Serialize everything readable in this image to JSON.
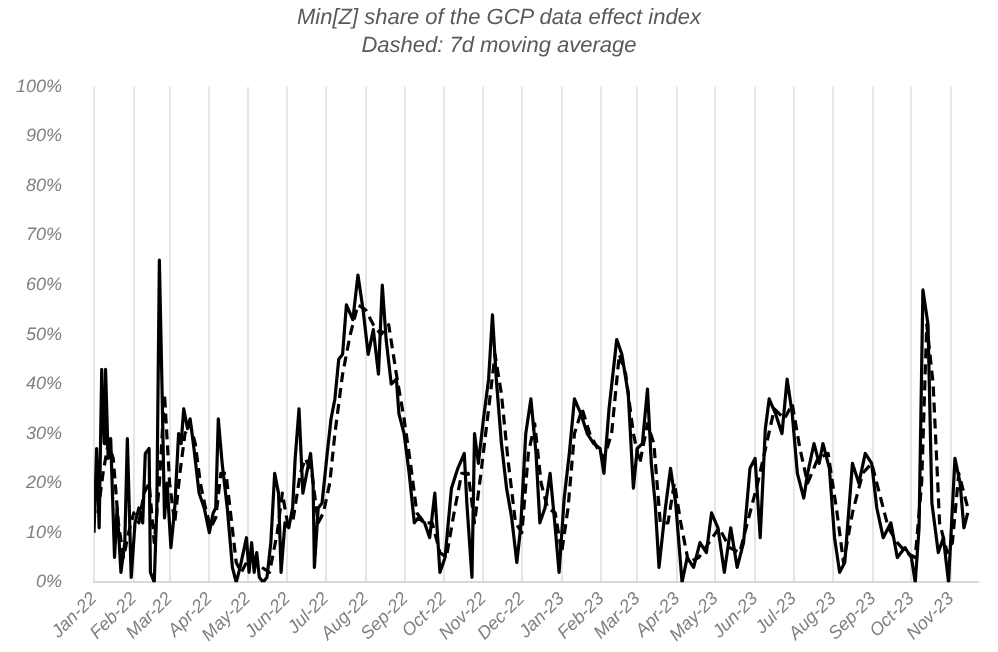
{
  "chart_data": {
    "type": "line",
    "title": "Min[Z] share of the GCP data effect index",
    "subtitle": "Dashed: 7d moving average",
    "xlim": [
      "2022-01-01",
      "2023-11-22"
    ],
    "xticks": [
      {
        "value": "2022-01-01",
        "label": "Jan-22"
      },
      {
        "value": "2022-02-01",
        "label": "Feb-22"
      },
      {
        "value": "2022-03-01",
        "label": "Mar-22"
      },
      {
        "value": "2022-04-01",
        "label": "Apr-22"
      },
      {
        "value": "2022-05-01",
        "label": "May-22"
      },
      {
        "value": "2022-06-01",
        "label": "Jun-22"
      },
      {
        "value": "2022-07-01",
        "label": "Jul-22"
      },
      {
        "value": "2022-08-01",
        "label": "Aug-22"
      },
      {
        "value": "2022-09-01",
        "label": "Sep-22"
      },
      {
        "value": "2022-10-01",
        "label": "Oct-22"
      },
      {
        "value": "2022-11-01",
        "label": "Nov-22"
      },
      {
        "value": "2022-12-01",
        "label": "Dec-22"
      },
      {
        "value": "2023-01-01",
        "label": "Jan-23"
      },
      {
        "value": "2023-02-01",
        "label": "Feb-23"
      },
      {
        "value": "2023-03-01",
        "label": "Mar-23"
      },
      {
        "value": "2023-04-01",
        "label": "Apr-23"
      },
      {
        "value": "2023-05-01",
        "label": "May-23"
      },
      {
        "value": "2023-06-01",
        "label": "Jun-23"
      },
      {
        "value": "2023-07-01",
        "label": "Jul-23"
      },
      {
        "value": "2023-08-01",
        "label": "Aug-23"
      },
      {
        "value": "2023-09-01",
        "label": "Sep-23"
      },
      {
        "value": "2023-10-01",
        "label": "Oct-23"
      },
      {
        "value": "2023-11-01",
        "label": "Nov-23"
      }
    ],
    "ylim": [
      0,
      100
    ],
    "yticks": [
      {
        "value": 0,
        "label": "0%"
      },
      {
        "value": 10,
        "label": "10%"
      },
      {
        "value": 20,
        "label": "20%"
      },
      {
        "value": 30,
        "label": "30%"
      },
      {
        "value": 40,
        "label": "40%"
      },
      {
        "value": 50,
        "label": "50%"
      },
      {
        "value": 60,
        "label": "60%"
      },
      {
        "value": 70,
        "label": "70%"
      },
      {
        "value": 80,
        "label": "80%"
      },
      {
        "value": 90,
        "label": "90%"
      },
      {
        "value": 100,
        "label": "100%"
      }
    ],
    "grid": "x",
    "legend": false,
    "marker": "none",
    "series": [
      {
        "color": "#000000",
        "line_style": "solid",
        "x": [
          "2022-01-01",
          "2022-01-03",
          "2022-01-05",
          "2022-01-07",
          "2022-01-09",
          "2022-01-10",
          "2022-01-12",
          "2022-01-14",
          "2022-01-17",
          "2022-01-19",
          "2022-01-22",
          "2022-01-25",
          "2022-01-27",
          "2022-01-30",
          "2022-02-02",
          "2022-02-05",
          "2022-02-08",
          "2022-02-10",
          "2022-02-13",
          "2022-02-14",
          "2022-02-17",
          "2022-02-19",
          "2022-02-21",
          "2022-02-23",
          "2022-02-25",
          "2022-02-27",
          "2022-03-02",
          "2022-03-05",
          "2022-03-08",
          "2022-03-10",
          "2022-03-12",
          "2022-03-15",
          "2022-03-17",
          "2022-03-20",
          "2022-03-24",
          "2022-03-28",
          "2022-04-01",
          "2022-04-04",
          "2022-04-06",
          "2022-04-08",
          "2022-04-11",
          "2022-04-15",
          "2022-04-19",
          "2022-04-22",
          "2022-04-25",
          "2022-04-30",
          "2022-05-02",
          "2022-05-04",
          "2022-05-06",
          "2022-05-08",
          "2022-05-10",
          "2022-05-13",
          "2022-05-16",
          "2022-05-19",
          "2022-05-22",
          "2022-05-25",
          "2022-05-27",
          "2022-05-30",
          "2022-06-02",
          "2022-06-05",
          "2022-06-07",
          "2022-06-10",
          "2022-06-13",
          "2022-06-16",
          "2022-06-19",
          "2022-06-21",
          "2022-06-22",
          "2022-06-25",
          "2022-06-28",
          "2022-07-02",
          "2022-07-05",
          "2022-07-08",
          "2022-07-11",
          "2022-07-14",
          "2022-07-17",
          "2022-07-22",
          "2022-07-26",
          "2022-07-30",
          "2022-08-03",
          "2022-08-07",
          "2022-08-11",
          "2022-08-14",
          "2022-08-17",
          "2022-08-21",
          "2022-08-25",
          "2022-08-27",
          "2022-08-31",
          "2022-09-04",
          "2022-09-08",
          "2022-09-11",
          "2022-09-16",
          "2022-09-20",
          "2022-09-24",
          "2022-09-28",
          "2022-10-02",
          "2022-10-07",
          "2022-10-12",
          "2022-10-17",
          "2022-10-19",
          "2022-10-23",
          "2022-10-25",
          "2022-10-28",
          "2022-11-01",
          "2022-11-05",
          "2022-11-08",
          "2022-11-11",
          "2022-11-15",
          "2022-11-19",
          "2022-11-23",
          "2022-11-27",
          "2022-11-30",
          "2022-12-04",
          "2022-12-08",
          "2022-12-12",
          "2022-12-15",
          "2022-12-19",
          "2022-12-23",
          "2022-12-27",
          "2022-12-30",
          "2023-01-03",
          "2023-01-07",
          "2023-01-11",
          "2023-01-16",
          "2023-01-21",
          "2023-01-26",
          "2023-01-31",
          "2023-02-03",
          "2023-02-07",
          "2023-02-13",
          "2023-02-17",
          "2023-02-22",
          "2023-02-26",
          "2023-03-01",
          "2023-03-05",
          "2023-03-09",
          "2023-03-12",
          "2023-03-15",
          "2023-03-18",
          "2023-03-23",
          "2023-03-27",
          "2023-03-31",
          "2023-04-05",
          "2023-04-09",
          "2023-04-14",
          "2023-04-19",
          "2023-04-24",
          "2023-04-28",
          "2023-05-03",
          "2023-05-08",
          "2023-05-13",
          "2023-05-18",
          "2023-05-23",
          "2023-05-28",
          "2023-06-01",
          "2023-06-05",
          "2023-06-09",
          "2023-06-12",
          "2023-06-17",
          "2023-06-22",
          "2023-06-26",
          "2023-06-30",
          "2023-07-04",
          "2023-07-09",
          "2023-07-12",
          "2023-07-17",
          "2023-07-21",
          "2023-07-24",
          "2023-07-29",
          "2023-08-02",
          "2023-08-06",
          "2023-08-10",
          "2023-08-16",
          "2023-08-21",
          "2023-08-26",
          "2023-08-31",
          "2023-09-04",
          "2023-09-09",
          "2023-09-15",
          "2023-09-20",
          "2023-09-26",
          "2023-10-01",
          "2023-10-04",
          "2023-10-07",
          "2023-10-10",
          "2023-10-14",
          "2023-10-17",
          "2023-10-22",
          "2023-10-26",
          "2023-10-30",
          "2023-11-04",
          "2023-11-08",
          "2023-11-11",
          "2023-11-14"
        ],
        "values": [
          10,
          27,
          11,
          43,
          28,
          43,
          25,
          29,
          5,
          15,
          2,
          8,
          29,
          1,
          12,
          15,
          12,
          26,
          27,
          2,
          0,
          15,
          65,
          40,
          13,
          20,
          7,
          15,
          30,
          28,
          35,
          31,
          33,
          27,
          18,
          15,
          10,
          14,
          15,
          33,
          24,
          15,
          3,
          0,
          3,
          9,
          2,
          8,
          2,
          6,
          1,
          0,
          1,
          8,
          22,
          18,
          2,
          12,
          11,
          15,
          25,
          35,
          18,
          22,
          26,
          20,
          3,
          15,
          16,
          26,
          33,
          37,
          45,
          46,
          56,
          53,
          62,
          55,
          46,
          51,
          42,
          60,
          49,
          40,
          41,
          34,
          30,
          22,
          12,
          13,
          12,
          9,
          18,
          2,
          5,
          19,
          23,
          26,
          16,
          1,
          30,
          24,
          33,
          41,
          54,
          41,
          28,
          19,
          13,
          4,
          11,
          30,
          37,
          26,
          12,
          15,
          22,
          11,
          2,
          17,
          26,
          37,
          34,
          30,
          28,
          27,
          22,
          35,
          49,
          46,
          38,
          19,
          27,
          28,
          39,
          24,
          16,
          3,
          15,
          23,
          16,
          0,
          5,
          3,
          8,
          6,
          14,
          11,
          2,
          11,
          3,
          8,
          23,
          25,
          9,
          31,
          37,
          34,
          30,
          41,
          34,
          22,
          17,
          22,
          28,
          24,
          28,
          23,
          9,
          2,
          4,
          24,
          20,
          26,
          24,
          15,
          9,
          12,
          5,
          7,
          5,
          0,
          11,
          59,
          52,
          16,
          6,
          9,
          0,
          25,
          20,
          11,
          14
        ]
      },
      {
        "color": "#000000",
        "line_style": "dashed",
        "x": [
          "2022-01-04",
          "2022-01-08",
          "2022-01-12",
          "2022-01-16",
          "2022-01-20",
          "2022-01-24",
          "2022-01-28",
          "2022-02-01",
          "2022-02-05",
          "2022-02-09",
          "2022-02-13",
          "2022-02-17",
          "2022-02-21",
          "2022-02-25",
          "2022-03-01",
          "2022-03-05",
          "2022-03-09",
          "2022-03-13",
          "2022-03-17",
          "2022-03-21",
          "2022-03-25",
          "2022-03-29",
          "2022-04-02",
          "2022-04-06",
          "2022-04-10",
          "2022-04-14",
          "2022-04-18",
          "2022-04-22",
          "2022-04-26",
          "2022-04-30",
          "2022-05-06",
          "2022-05-12",
          "2022-05-18",
          "2022-05-24",
          "2022-05-28",
          "2022-06-01",
          "2022-06-05",
          "2022-06-11",
          "2022-06-15",
          "2022-06-20",
          "2022-06-25",
          "2022-06-29",
          "2022-07-04",
          "2022-07-08",
          "2022-07-14",
          "2022-07-20",
          "2022-07-26",
          "2022-08-01",
          "2022-08-07",
          "2022-08-13",
          "2022-08-19",
          "2022-08-25",
          "2022-08-31",
          "2022-09-05",
          "2022-09-10",
          "2022-09-16",
          "2022-09-22",
          "2022-09-28",
          "2022-10-03",
          "2022-10-09",
          "2022-10-15",
          "2022-10-20",
          "2022-10-25",
          "2022-10-30",
          "2022-11-05",
          "2022-11-10",
          "2022-11-15",
          "2022-11-20",
          "2022-11-26",
          "2022-12-01",
          "2022-12-06",
          "2022-12-11",
          "2022-12-16",
          "2022-12-21",
          "2022-12-27",
          "2023-01-01",
          "2023-01-06",
          "2023-01-11",
          "2023-01-17",
          "2023-01-23",
          "2023-01-29",
          "2023-02-03",
          "2023-02-09",
          "2023-02-15",
          "2023-02-20",
          "2023-02-26",
          "2023-03-03",
          "2023-03-09",
          "2023-03-14",
          "2023-03-19",
          "2023-03-25",
          "2023-03-30",
          "2023-04-04",
          "2023-04-10",
          "2023-04-18",
          "2023-04-26",
          "2023-05-04",
          "2023-05-12",
          "2023-05-20",
          "2023-05-27",
          "2023-06-03",
          "2023-06-10",
          "2023-06-16",
          "2023-06-24",
          "2023-06-30",
          "2023-07-06",
          "2023-07-12",
          "2023-07-20",
          "2023-07-28",
          "2023-08-04",
          "2023-08-09",
          "2023-08-16",
          "2023-08-24",
          "2023-08-31",
          "2023-09-06",
          "2023-09-13",
          "2023-09-20",
          "2023-09-27",
          "2023-10-04",
          "2023-10-09",
          "2023-10-13",
          "2023-10-18",
          "2023-10-23",
          "2023-10-29",
          "2023-11-02",
          "2023-11-07",
          "2023-11-11",
          "2023-11-14"
        ],
        "values": [
          14,
          22,
          28,
          25,
          12,
          5,
          10,
          14,
          12,
          18,
          20,
          8,
          20,
          38,
          20,
          12,
          22,
          30,
          32,
          28,
          20,
          15,
          11,
          13,
          22,
          22,
          13,
          4,
          2,
          4,
          5,
          3,
          2,
          10,
          18,
          12,
          12,
          22,
          25,
          22,
          12,
          14,
          20,
          30,
          42,
          50,
          56,
          55,
          52,
          50,
          52,
          42,
          33,
          24,
          14,
          12,
          12,
          6,
          5,
          14,
          22,
          22,
          12,
          22,
          35,
          46,
          38,
          25,
          12,
          10,
          26,
          32,
          20,
          15,
          14,
          6,
          15,
          30,
          35,
          30,
          27,
          25,
          30,
          46,
          42,
          30,
          24,
          32,
          28,
          12,
          12,
          20,
          12,
          4,
          5,
          8,
          11,
          7,
          6,
          13,
          20,
          28,
          35,
          33,
          36,
          27,
          20,
          25,
          26,
          14,
          4,
          14,
          22,
          24,
          18,
          11,
          8,
          6,
          5,
          20,
          52,
          40,
          12,
          6,
          8,
          22,
          18,
          15
        ]
      }
    ]
  }
}
